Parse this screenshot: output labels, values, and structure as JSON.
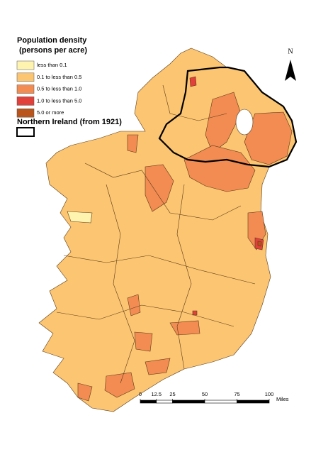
{
  "legend": {
    "title": "Population density",
    "subtitle": "(persons per acre)",
    "items": [
      {
        "label": "less than 0.1",
        "color": "#fff3b0"
      },
      {
        "label": "0.1 to less than 0.5",
        "color": "#fcc571"
      },
      {
        "label": "0.5 to less than 1.0",
        "color": "#f28c52"
      },
      {
        "label": "1.0 to less than 5.0",
        "color": "#e2403a"
      },
      {
        "label": "5.0 or more",
        "color": "#b9541c"
      }
    ],
    "boundary_label": "Northern Ireland (from 1921)"
  },
  "north_label": "N",
  "scale": {
    "ticks": [
      0,
      12.5,
      25,
      50,
      75,
      100
    ],
    "unit": "Miles"
  }
}
